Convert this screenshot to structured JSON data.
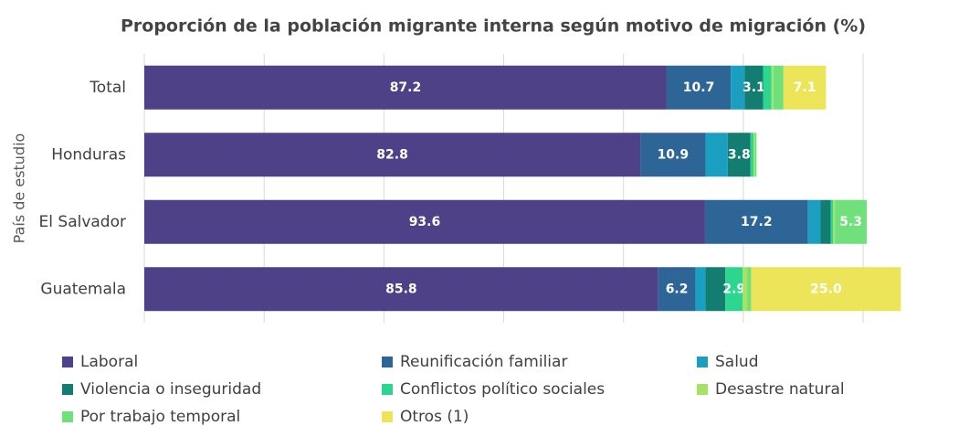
{
  "chart_data": {
    "type": "stacked-bar-horizontal",
    "title": "Proporción de la población migrante interna según motivo de migración (%)",
    "y_label": "País de estudio",
    "categories": [
      "Total",
      "Honduras",
      "El Salvador",
      "Guatemala"
    ],
    "xlim": [
      0,
      127
    ],
    "xticks": [
      0,
      20,
      40,
      60,
      80,
      100,
      120
    ],
    "grid": true,
    "series": [
      {
        "name": "Laboral",
        "color": "#4f4188",
        "values": [
          87.2,
          82.8,
          93.6,
          85.8
        ],
        "value_labels": [
          "87.2",
          "82.8",
          "93.6",
          "85.8"
        ]
      },
      {
        "name": "Reunificación familiar",
        "color": "#2e6597",
        "values": [
          10.7,
          10.9,
          17.2,
          6.2
        ],
        "value_labels": [
          "10.7",
          "10.9",
          "17.2",
          "6.2"
        ]
      },
      {
        "name": "Salud",
        "color": "#1a9fc1",
        "values": [
          2.3,
          3.7,
          2.1,
          1.7
        ]
      },
      {
        "name": "Violencia o inseguridad",
        "color": "#137d71",
        "values": [
          3.1,
          3.8,
          1.7,
          3.3
        ],
        "value_labels": [
          "3.1",
          "3.8",
          null,
          null
        ]
      },
      {
        "name": "Conflictos político sociales",
        "color": "#2dd68f",
        "values": [
          1.4,
          0.5,
          0.4,
          2.9
        ],
        "value_labels": [
          null,
          null,
          null,
          "2.9"
        ]
      },
      {
        "name": "Desastre natural",
        "color": "#a6e263",
        "values": [
          0.3,
          0.2,
          0.3,
          0.8
        ]
      },
      {
        "name": "Por trabajo temporal",
        "color": "#6fe07a",
        "values": [
          1.7,
          0.3,
          5.3,
          0.6
        ],
        "value_labels": [
          null,
          null,
          "5.3",
          null
        ]
      },
      {
        "name": "Otros (1)",
        "color": "#ece55a",
        "values": [
          7.1,
          0,
          0,
          25.0
        ],
        "value_labels": [
          "7.1",
          null,
          null,
          "25.0"
        ]
      }
    ]
  }
}
